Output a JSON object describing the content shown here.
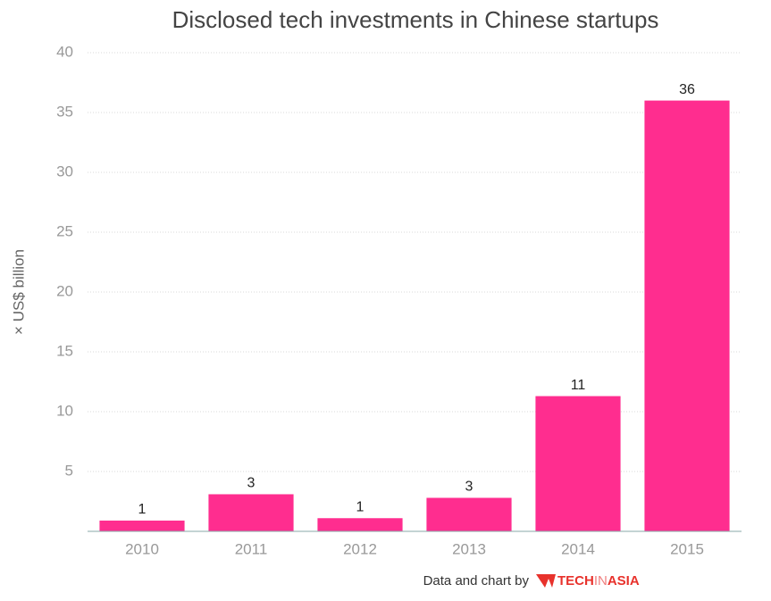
{
  "chart_data": {
    "type": "bar",
    "title": "Disclosed tech investments in Chinese startups",
    "y_label": "× US$ billion",
    "categories": [
      "2010",
      "2011",
      "2012",
      "2013",
      "2014",
      "2015"
    ],
    "values": [
      0.9,
      3.1,
      1.1,
      2.8,
      11.3,
      36
    ],
    "value_labels": [
      "1",
      "3",
      "1",
      "3",
      "11",
      "36"
    ],
    "color": "#ff2d8f",
    "ylim": [
      0,
      40
    ],
    "yticks": [
      5,
      10,
      15,
      20,
      25,
      30,
      35,
      40
    ],
    "grid": true,
    "source": "Data and chart by",
    "logo": [
      "TECH",
      "IN",
      "ASIA"
    ]
  }
}
